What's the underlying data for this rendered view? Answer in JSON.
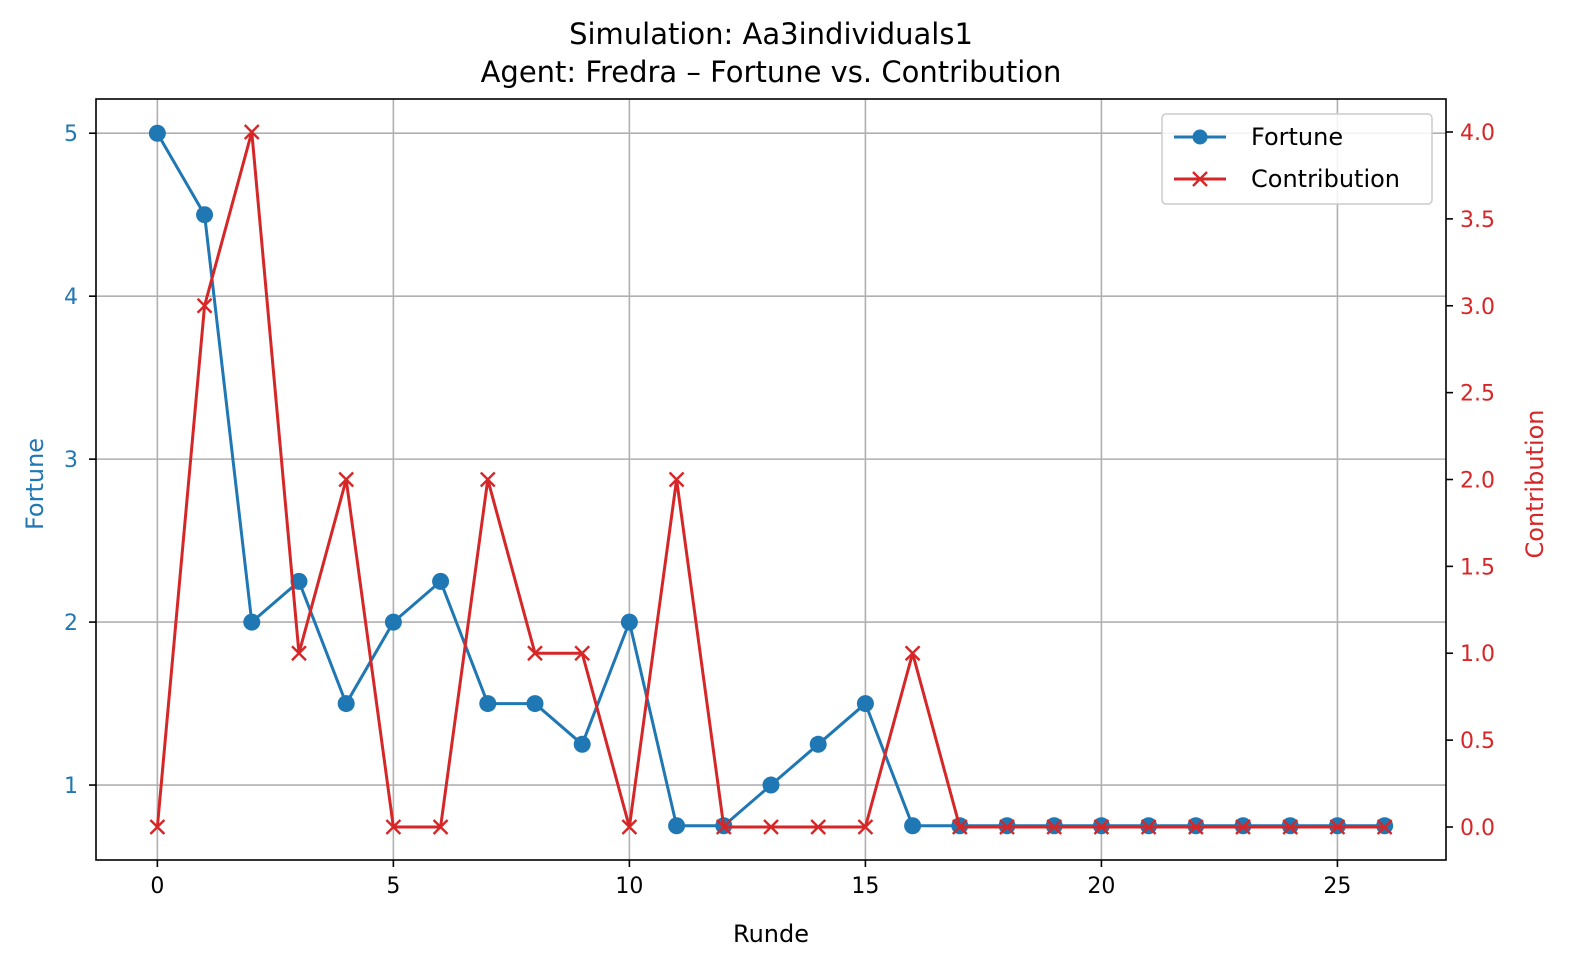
{
  "chart_data": {
    "type": "line",
    "title": "Simulation: Aa3individuals1",
    "subtitle": "Agent: Fredra – Fortune vs. Contribution",
    "xlabel": "Runde",
    "ylabel_left": "Fortune",
    "ylabel_right": "Contribution",
    "xlim": [
      -1.3,
      27.3
    ],
    "ylim_left": [
      0.54,
      5.21
    ],
    "ylim_right": [
      -0.19,
      4.19
    ],
    "x_ticks": [
      0,
      5,
      10,
      15,
      20,
      25
    ],
    "y_ticks_left": [
      1,
      2,
      3,
      4,
      5
    ],
    "y_ticks_right": [
      "0.0",
      "0.5",
      "1.0",
      "1.5",
      "2.0",
      "2.5",
      "3.0",
      "3.5",
      "4.0"
    ],
    "grid": true,
    "legend_position": "top-right",
    "x": [
      0,
      1,
      2,
      3,
      4,
      5,
      6,
      7,
      8,
      9,
      10,
      11,
      12,
      13,
      14,
      15,
      16,
      17,
      18,
      19,
      20,
      21,
      22,
      23,
      24,
      25,
      26
    ],
    "series": [
      {
        "name": "Fortune",
        "axis": "left",
        "marker": "circle",
        "color": "#1f77b4",
        "values": [
          5,
          4.5,
          2,
          2.25,
          1.5,
          2,
          2.25,
          1.5,
          1.5,
          1.25,
          2,
          0.75,
          0.75,
          1,
          1.25,
          1.5,
          0.75,
          0.75,
          0.75,
          0.75,
          0.75,
          0.75,
          0.75,
          0.75,
          0.75,
          0.75,
          0.75
        ]
      },
      {
        "name": "Contribution",
        "axis": "right",
        "marker": "x",
        "color": "#d62728",
        "values": [
          0,
          3,
          4,
          1,
          2,
          0,
          0,
          2,
          1,
          1,
          0,
          2,
          0,
          0,
          0,
          0,
          1,
          0,
          0,
          0,
          0,
          0,
          0,
          0,
          0,
          0,
          0
        ]
      }
    ]
  }
}
